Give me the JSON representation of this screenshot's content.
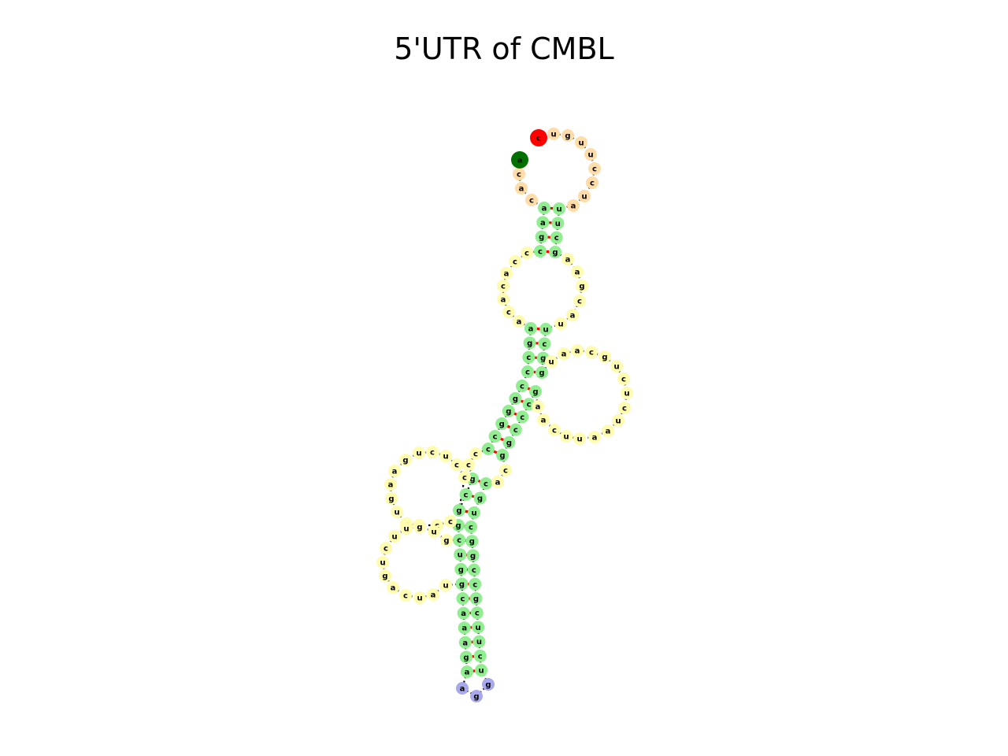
{
  "title": "5'UTR of CMBL",
  "colors": {
    "five_prime_end": "#ff0000",
    "three_prime_end": "#007000",
    "exterior_loop": "#ffdca8",
    "stem": "#90ee90",
    "interior_loop": "#fffcb0",
    "hairpin_loop": "#a8a8ee",
    "backbone": "#000000",
    "base_pair": "#ff0000"
  },
  "structure": {
    "five_prime_end": "c",
    "three_prime_end": "a",
    "exterior_loop_5p": [
      "u",
      "g",
      "u",
      "u",
      "c",
      "c",
      "u",
      "a"
    ],
    "exterior_loop_3p": [
      "c",
      "a",
      "c",
      "c"
    ],
    "stem_1": [
      [
        "u",
        "a"
      ],
      [
        "u",
        "a"
      ],
      [
        "c",
        "g"
      ],
      [
        "g",
        "c"
      ]
    ],
    "interior_loop_1_right": [
      "a",
      "a",
      "g",
      "c",
      "a"
    ],
    "interior_loop_1_left": [
      "c",
      "c",
      "a",
      "c",
      "a",
      "c",
      "a"
    ],
    "stem_2": [
      [
        "u",
        "a"
      ],
      [
        "c",
        "g"
      ],
      [
        "g",
        "c"
      ],
      [
        "g",
        "c"
      ]
    ],
    "side_loop_right": [
      "u",
      "a",
      "a",
      "c",
      "g",
      "u",
      "c",
      "u",
      "c",
      "u",
      "a",
      "a",
      "u",
      "u",
      "c"
    ],
    "stem_3": [
      [
        "g",
        "c"
      ],
      [
        "c",
        "g"
      ],
      [
        "c",
        "g"
      ],
      [
        "c",
        "g"
      ],
      [
        "g",
        "c"
      ],
      [
        "g",
        "c"
      ]
    ],
    "bulge_right": [
      "c",
      "a"
    ],
    "bulge_left": [
      "c",
      "c"
    ],
    "stem_4": [
      [
        "c",
        "g"
      ],
      [
        "g",
        "c"
      ],
      [
        "u",
        "g"
      ]
    ],
    "side_loop_left_upper": [
      "c",
      "c",
      "u",
      "c",
      "u",
      "g",
      "a",
      "a",
      "c",
      "u"
    ],
    "side_loop_left_lower": [
      "c",
      "g",
      "u",
      "u",
      "c",
      "u",
      "g",
      "a",
      "c",
      "u",
      "a"
    ],
    "stem_5": [
      [
        "c",
        "g"
      ],
      [
        "g",
        "c"
      ],
      [
        "g",
        "u"
      ],
      [
        "c",
        "g"
      ],
      [
        "c",
        "g"
      ],
      [
        "g",
        "c"
      ],
      [
        "c",
        "a"
      ],
      [
        "u",
        "a"
      ],
      [
        "u",
        "a"
      ],
      [
        "c",
        "g"
      ],
      [
        "u",
        "a"
      ]
    ],
    "hairpin_loop": [
      "a",
      "g",
      "g"
    ]
  }
}
